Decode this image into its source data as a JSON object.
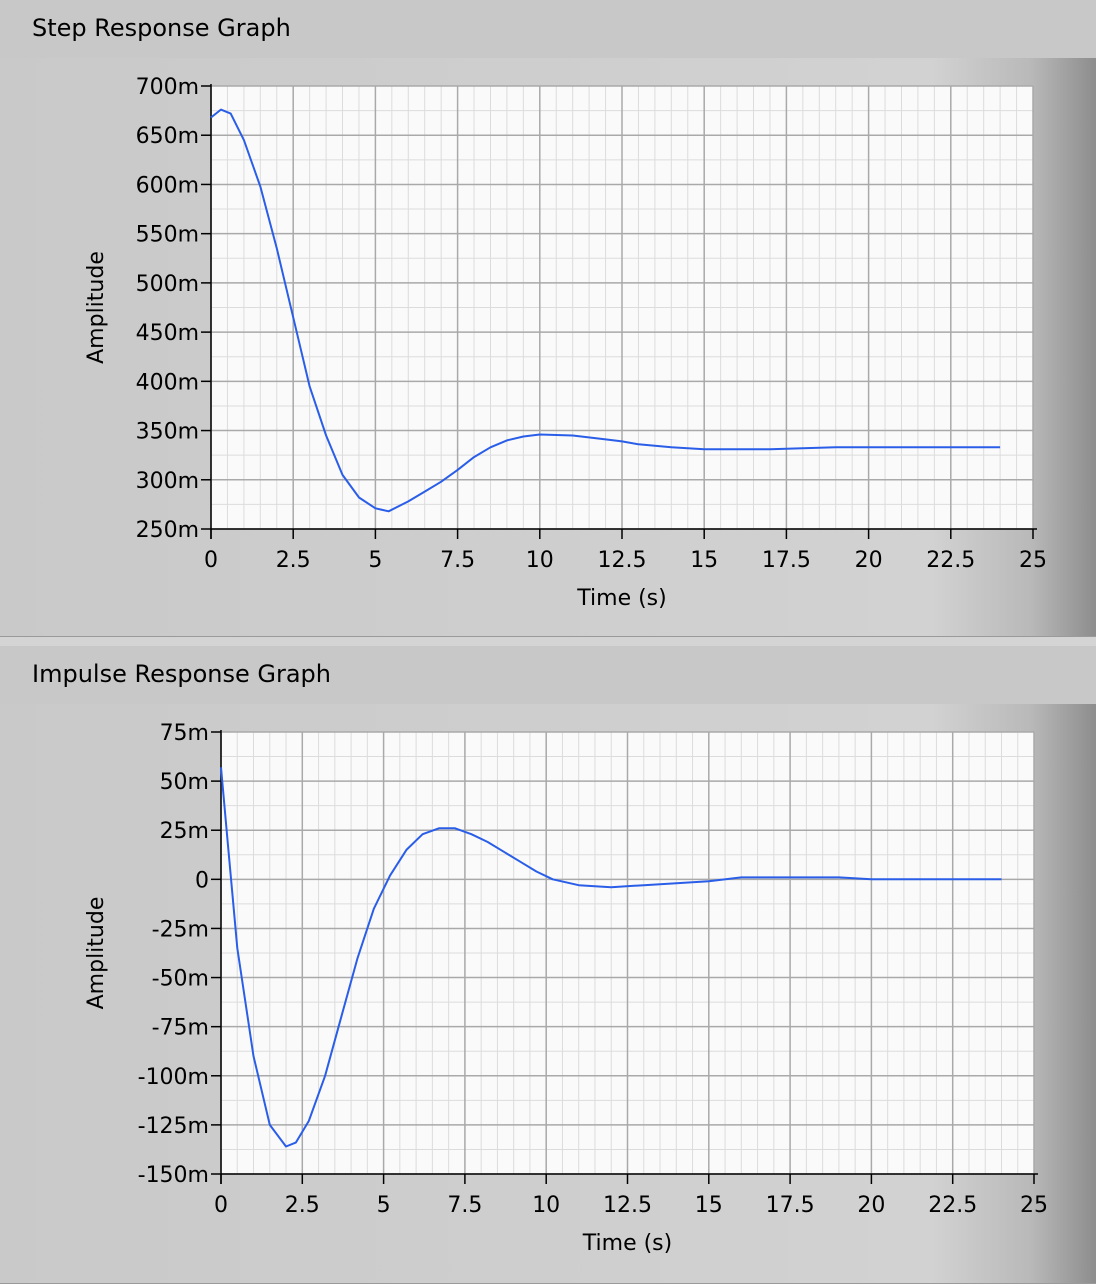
{
  "chart_data": [
    {
      "type": "line",
      "title": "Step Response Graph",
      "xlabel": "Time (s)",
      "ylabel": "Amplitude",
      "xlim": [
        0,
        25
      ],
      "ylim": [
        0.25,
        0.7
      ],
      "x_ticks": [
        "0",
        "2.5",
        "5",
        "7.5",
        "10",
        "12.5",
        "15",
        "17.5",
        "20",
        "22.5",
        "25"
      ],
      "y_ticks": [
        "700m",
        "650m",
        "600m",
        "550m",
        "500m",
        "450m",
        "400m",
        "350m",
        "300m",
        "250m"
      ],
      "grid": true,
      "line_color": "#2a5ee8",
      "x": [
        0,
        0.3,
        0.6,
        1,
        1.5,
        2,
        2.5,
        3,
        3.5,
        4,
        4.5,
        5,
        5.4,
        6,
        6.5,
        7,
        7.5,
        8,
        8.5,
        9,
        9.5,
        10,
        11,
        12,
        12.5,
        13,
        14,
        15,
        16,
        17,
        18,
        19,
        20,
        21,
        22,
        23,
        24
      ],
      "y": [
        0.668,
        0.676,
        0.672,
        0.645,
        0.598,
        0.535,
        0.465,
        0.395,
        0.345,
        0.305,
        0.282,
        0.271,
        0.268,
        0.278,
        0.288,
        0.298,
        0.31,
        0.323,
        0.333,
        0.34,
        0.344,
        0.346,
        0.345,
        0.341,
        0.339,
        0.336,
        0.333,
        0.331,
        0.331,
        0.331,
        0.332,
        0.333,
        0.333,
        0.333,
        0.333,
        0.333,
        0.333
      ]
    },
    {
      "type": "line",
      "title": "Impulse Response Graph",
      "xlabel": "Time (s)",
      "ylabel": "Amplitude",
      "xlim": [
        0,
        25
      ],
      "ylim": [
        -0.15,
        0.075
      ],
      "x_ticks": [
        "0",
        "2.5",
        "5",
        "7.5",
        "10",
        "12.5",
        "15",
        "17.5",
        "20",
        "22.5",
        "25"
      ],
      "y_ticks": [
        "75m",
        "50m",
        "25m",
        "0",
        "-25m",
        "-50m",
        "-75m",
        "-100m",
        "-125m",
        "-150m"
      ],
      "grid": true,
      "line_color": "#2a5ee8",
      "x": [
        0,
        0.2,
        0.5,
        1,
        1.5,
        2,
        2.3,
        2.7,
        3.2,
        3.7,
        4.2,
        4.7,
        5.2,
        5.7,
        6.2,
        6.7,
        7.2,
        7.7,
        8.2,
        8.7,
        9.2,
        9.7,
        10.2,
        11,
        12,
        13,
        14,
        15,
        16,
        17,
        18,
        19,
        20,
        21,
        22,
        23,
        24
      ],
      "y": [
        0.057,
        0.02,
        -0.035,
        -0.09,
        -0.125,
        -0.136,
        -0.134,
        -0.123,
        -0.1,
        -0.07,
        -0.04,
        -0.015,
        0.002,
        0.015,
        0.023,
        0.026,
        0.026,
        0.023,
        0.019,
        0.014,
        0.009,
        0.004,
        0.0,
        -0.003,
        -0.004,
        -0.003,
        -0.002,
        -0.001,
        0.001,
        0.001,
        0.001,
        0.001,
        0.0,
        0.0,
        0.0,
        0.0,
        0.0
      ]
    }
  ]
}
